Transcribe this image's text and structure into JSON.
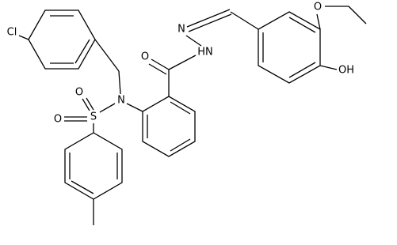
{
  "atoms": [
    "Cl",
    "O",
    "S",
    "O",
    "N",
    "O",
    "N",
    "HN",
    "O",
    "OH"
  ]
}
